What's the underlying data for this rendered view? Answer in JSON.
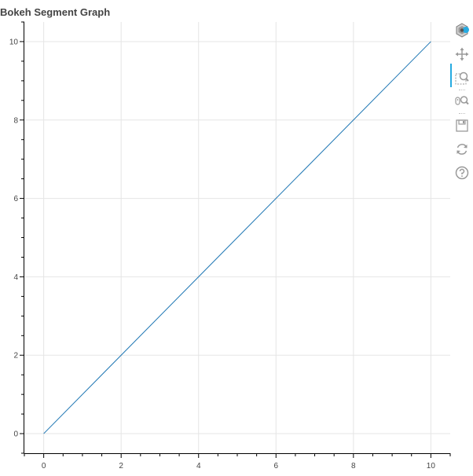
{
  "title": "Bokeh Segment Graph",
  "toolbar": {
    "tools": [
      {
        "name": "bokeh-logo",
        "label": "Bokeh"
      },
      {
        "name": "pan-tool",
        "label": "Pan",
        "active": true
      },
      {
        "name": "box-zoom-tool",
        "label": "Box Zoom"
      },
      {
        "name": "wheel-zoom-tool",
        "label": "Wheel Zoom"
      },
      {
        "name": "save-tool",
        "label": "Save"
      },
      {
        "name": "reset-tool",
        "label": "Reset"
      },
      {
        "name": "help-tool",
        "label": "Help"
      }
    ],
    "accent_color": "#26aae1"
  },
  "chart_data": {
    "type": "line",
    "title": "Bokeh Segment Graph",
    "xlabel": "",
    "ylabel": "",
    "xlim": [
      -0.5,
      10.5
    ],
    "ylim": [
      -0.5,
      10.5
    ],
    "x_ticks": [
      0,
      2,
      4,
      6,
      8,
      10
    ],
    "y_ticks": [
      0,
      2,
      4,
      6,
      8,
      10
    ],
    "x_minor_step": 0.5,
    "y_minor_step": 0.5,
    "grid": true,
    "segments": [
      {
        "x0": 0,
        "y0": 0,
        "x1": 10,
        "y1": 10,
        "color": "#1f77b4"
      }
    ]
  }
}
